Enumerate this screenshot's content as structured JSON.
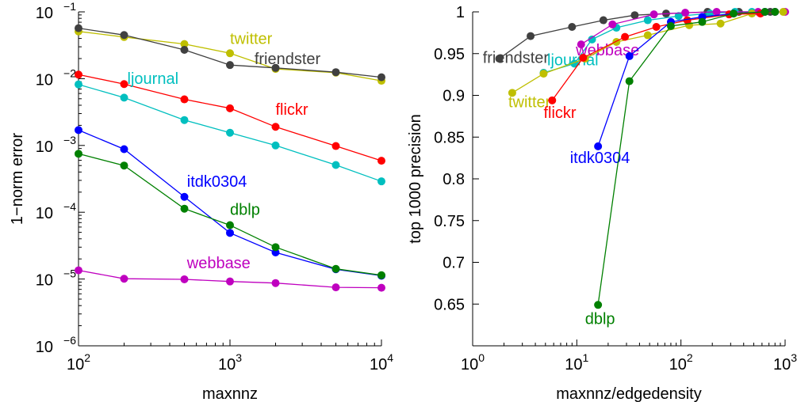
{
  "chart_data": [
    {
      "type": "line",
      "xscale": "log",
      "yscale": "log",
      "xlabel": "maxnnz",
      "ylabel": "1−norm error",
      "xlim": [
        100,
        10000
      ],
      "ylim": [
        1e-06,
        0.1
      ],
      "xticks": [
        {
          "value": 100,
          "base": "10",
          "exp": "2"
        },
        {
          "value": 1000,
          "base": "10",
          "exp": "3"
        },
        {
          "value": 10000,
          "base": "10",
          "exp": "4"
        }
      ],
      "yticks": [
        {
          "value": 1e-06,
          "base": "10",
          "exp": "−6"
        },
        {
          "value": 1e-05,
          "base": "10",
          "exp": "−5"
        },
        {
          "value": 0.0001,
          "base": "10",
          "exp": "−4"
        },
        {
          "value": 0.001,
          "base": "10",
          "exp": "−3"
        },
        {
          "value": 0.01,
          "base": "10",
          "exp": "−2"
        },
        {
          "value": 0.1,
          "base": "10",
          "exp": "−1"
        }
      ],
      "x": [
        100,
        200,
        500,
        1000,
        2000,
        5000,
        10000
      ],
      "series": [
        {
          "name": "twitter",
          "color": "#bfbf00",
          "label_at": [
            1000,
            0.033
          ],
          "values": [
            0.051,
            0.042,
            0.033,
            0.024,
            0.014,
            0.0123,
            0.0093
          ]
        },
        {
          "name": "friendster",
          "color": "#404040",
          "label_at": [
            1450,
            0.0165
          ],
          "values": [
            0.057,
            0.045,
            0.027,
            0.016,
            0.0145,
            0.0125,
            0.0105
          ]
        },
        {
          "name": "flickr",
          "color": "#ff0000",
          "label_at": [
            2000,
            0.0029
          ],
          "values": [
            0.0115,
            0.0083,
            0.0049,
            0.0036,
            0.0019,
            0.00098,
            0.00059
          ]
        },
        {
          "name": "ljournal",
          "color": "#00bfbf",
          "label_at": [
            210,
            0.0083
          ],
          "values": [
            0.0082,
            0.0052,
            0.0024,
            0.00155,
            0.001,
            0.00051,
            0.00029
          ]
        },
        {
          "name": "itdk0304",
          "color": "#0000ff",
          "label_at": [
            520,
            0.00024
          ],
          "values": [
            0.0017,
            0.00088,
            0.00017,
            4.9e-05,
            2.5e-05,
            1.4e-05,
            1.12e-05
          ]
        },
        {
          "name": "dblp",
          "color": "#008000",
          "label_at": [
            1000,
            9.2e-05
          ],
          "values": [
            0.00075,
            0.0005,
            0.000113,
            6.4e-05,
            3e-05,
            1.42e-05,
            1.14e-05
          ]
        },
        {
          "name": "webbase",
          "color": "#bf00bf",
          "label_at": [
            520,
            1.45e-05
          ],
          "values": [
            1.35e-05,
            1.01e-05,
            9.9e-06,
            9.2e-06,
            8.7e-06,
            7.5e-06,
            7.4e-06
          ]
        }
      ]
    },
    {
      "type": "line",
      "xscale": "log",
      "yscale": "linear",
      "xlabel": "maxnnz/edgedensity",
      "ylabel": "top 1000 precision",
      "xlim": [
        1,
        1000
      ],
      "ylim": [
        0.6,
        1.0
      ],
      "xticks": [
        {
          "value": 1,
          "base": "10",
          "exp": "0"
        },
        {
          "value": 10,
          "base": "10",
          "exp": "1"
        },
        {
          "value": 100,
          "base": "10",
          "exp": "2"
        },
        {
          "value": 1000,
          "base": "10",
          "exp": "3"
        }
      ],
      "yticks": [
        {
          "value": 0.65,
          "label": "0.65"
        },
        {
          "value": 0.7,
          "label": "0.7"
        },
        {
          "value": 0.75,
          "label": "0.75"
        },
        {
          "value": 0.8,
          "label": "0.8"
        },
        {
          "value": 0.85,
          "label": "0.85"
        },
        {
          "value": 0.9,
          "label": "0.9"
        },
        {
          "value": 0.95,
          "label": "0.95"
        },
        {
          "value": 1.0,
          "label": "1"
        }
      ],
      "series": [
        {
          "name": "friendster",
          "color": "#404040",
          "label_at": [
            1.25,
            0.939
          ],
          "points": [
            [
              1.8,
              0.944
            ],
            [
              3.6,
              0.971
            ],
            [
              9,
              0.982
            ],
            [
              18,
              0.99
            ],
            [
              36,
              0.996
            ],
            [
              72,
              0.998
            ],
            [
              180,
              1.0
            ],
            [
              360,
              1.0
            ],
            [
              720,
              1.0
            ]
          ]
        },
        {
          "name": "ljournal",
          "color": "#00bfbf",
          "label_at": [
            5.2,
            0.936
          ],
          "points": [
            [
              4.8,
              0.927
            ],
            [
              9.5,
              0.938
            ],
            [
              14,
              0.967
            ],
            [
              24,
              0.981
            ],
            [
              48,
              0.99
            ],
            [
              95,
              0.995
            ],
            [
              190,
              0.998
            ],
            [
              330,
              1.0
            ],
            [
              480,
              1.0
            ]
          ]
        },
        {
          "name": "webbase",
          "color": "#bf00bf",
          "label_at": [
            9.8,
            0.948
          ],
          "points": [
            [
              11,
              0.961
            ],
            [
              22,
              0.985
            ],
            [
              55,
              0.997
            ],
            [
              110,
              0.999
            ],
            [
              220,
              1.0
            ],
            [
              550,
              1.0
            ],
            [
              1000,
              1.0
            ]
          ]
        },
        {
          "name": "twitter",
          "color": "#bfbf00",
          "label_at": [
            2.2,
            0.886
          ],
          "points": [
            [
              2.4,
              0.903
            ],
            [
              4.8,
              0.926
            ],
            [
              12,
              0.944
            ],
            [
              24,
              0.964
            ],
            [
              48,
              0.972
            ],
            [
              120,
              0.984
            ],
            [
              240,
              0.986
            ],
            [
              480,
              0.998
            ],
            [
              960,
              1.0
            ]
          ]
        },
        {
          "name": "flickr",
          "color": "#ff0000",
          "label_at": [
            4.8,
            0.873
          ],
          "points": [
            [
              5.8,
              0.894
            ],
            [
              11.5,
              0.945
            ],
            [
              29,
              0.97
            ],
            [
              58,
              0.982
            ],
            [
              115,
              0.99
            ],
            [
              290,
              0.997
            ],
            [
              580,
              0.998
            ],
            [
              800,
              1.0
            ]
          ]
        },
        {
          "name": "itdk0304",
          "color": "#0000ff",
          "label_at": [
            8.6,
            0.819
          ],
          "points": [
            [
              16,
              0.839
            ],
            [
              32,
              0.947
            ],
            [
              80,
              0.988
            ],
            [
              160,
              0.994
            ],
            [
              320,
              0.998
            ],
            [
              640,
              1.0
            ],
            [
              800,
              1.0
            ]
          ]
        },
        {
          "name": "dblp",
          "color": "#008000",
          "label_at": [
            12,
            0.626
          ],
          "points": [
            [
              16,
              0.649
            ],
            [
              32,
              0.917
            ],
            [
              80,
              0.983
            ],
            [
              160,
              0.988
            ],
            [
              320,
              0.998
            ],
            [
              640,
              1.0
            ],
            [
              800,
              1.0
            ]
          ]
        }
      ]
    }
  ]
}
